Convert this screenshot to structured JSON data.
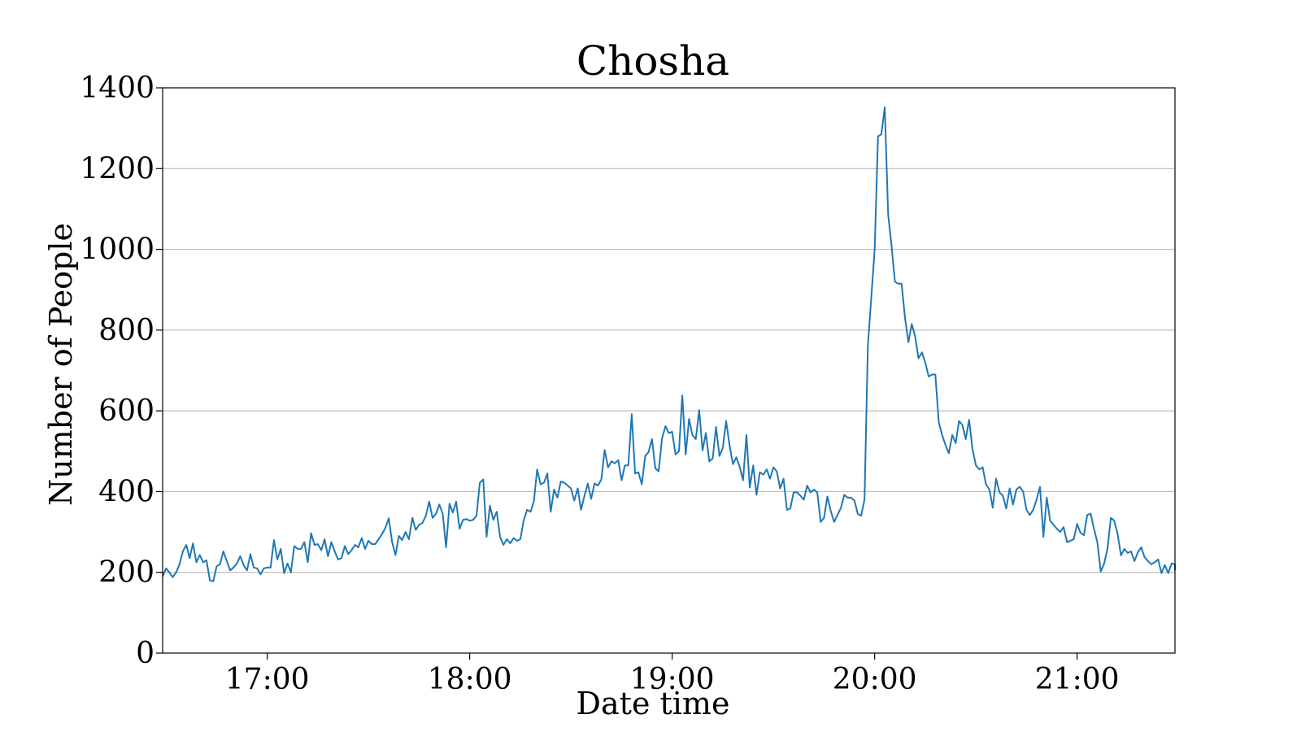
{
  "chart_data": {
    "type": "line",
    "title": "Chosha",
    "xlabel": "Date time",
    "ylabel": "Number of People",
    "xlim": [
      "16:29",
      "21:29"
    ],
    "ylim": [
      0,
      1400
    ],
    "grid": {
      "y": true,
      "x": false
    },
    "line_color": "#1f77b4",
    "x_ticks": [
      "17:00",
      "18:00",
      "19:00",
      "20:00",
      "21:00"
    ],
    "y_ticks": [
      0,
      200,
      400,
      600,
      800,
      1000,
      1200,
      1400
    ],
    "x_sample_interval_minutes": 1,
    "x_start": "16:29",
    "series": [
      {
        "values": [
          190,
          210,
          200,
          188,
          200,
          220,
          252,
          268,
          235,
          272,
          225,
          243,
          225,
          230,
          180,
          178,
          215,
          220,
          252,
          228,
          205,
          212,
          222,
          240,
          218,
          205,
          245,
          212,
          210,
          195,
          210,
          212,
          212,
          280,
          232,
          258,
          198,
          222,
          200,
          265,
          258,
          258,
          275,
          225,
          297,
          268,
          270,
          255,
          282,
          240,
          275,
          252,
          232,
          235,
          265,
          245,
          255,
          268,
          262,
          285,
          258,
          278,
          270,
          270,
          282,
          295,
          310,
          334,
          275,
          243,
          290,
          280,
          300,
          282,
          335,
          305,
          318,
          322,
          340,
          375,
          335,
          345,
          368,
          345,
          262,
          370,
          348,
          375,
          308,
          330,
          332,
          328,
          330,
          340,
          422,
          430,
          288,
          365,
          330,
          350,
          288,
          268,
          282,
          272,
          285,
          278,
          282,
          328,
          355,
          350,
          375,
          455,
          418,
          422,
          445,
          350,
          405,
          385,
          425,
          422,
          415,
          408,
          378,
          408,
          355,
          390,
          420,
          382,
          420,
          415,
          430,
          503,
          460,
          475,
          470,
          478,
          428,
          465,
          465,
          592,
          445,
          448,
          418,
          488,
          498,
          530,
          458,
          450,
          532,
          562,
          545,
          548,
          492,
          500,
          638,
          492,
          580,
          540,
          530,
          602,
          502,
          545,
          475,
          482,
          560,
          488,
          508,
          575,
          515,
          468,
          485,
          462,
          428,
          540,
          410,
          465,
          392,
          448,
          442,
          455,
          432,
          460,
          450,
          408,
          432,
          355,
          358,
          398,
          398,
          390,
          380,
          415,
          398,
          405,
          398,
          325,
          335,
          388,
          352,
          325,
          342,
          360,
          392,
          385,
          385,
          378,
          345,
          340,
          380,
          760,
          880,
          1000,
          1280,
          1285,
          1352,
          1085,
          1010,
          920,
          915,
          915,
          830,
          770,
          815,
          785,
          730,
          745,
          720,
          685,
          690,
          690,
          572,
          540,
          515,
          495,
          540,
          520,
          575,
          565,
          530,
          578,
          505,
          465,
          455,
          460,
          418,
          405,
          360,
          432,
          398,
          390,
          358,
          408,
          368,
          405,
          412,
          400,
          355,
          342,
          355,
          380,
          412,
          288,
          385,
          328,
          318,
          308,
          300,
          312,
          275,
          278,
          282,
          320,
          298,
          292,
          342,
          345,
          308,
          275,
          202,
          222,
          258,
          335,
          328,
          295,
          242,
          258,
          248,
          252,
          228,
          250,
          262,
          238,
          228,
          220,
          225,
          232,
          198,
          218,
          198,
          222,
          220,
          215,
          205
        ]
      }
    ]
  }
}
